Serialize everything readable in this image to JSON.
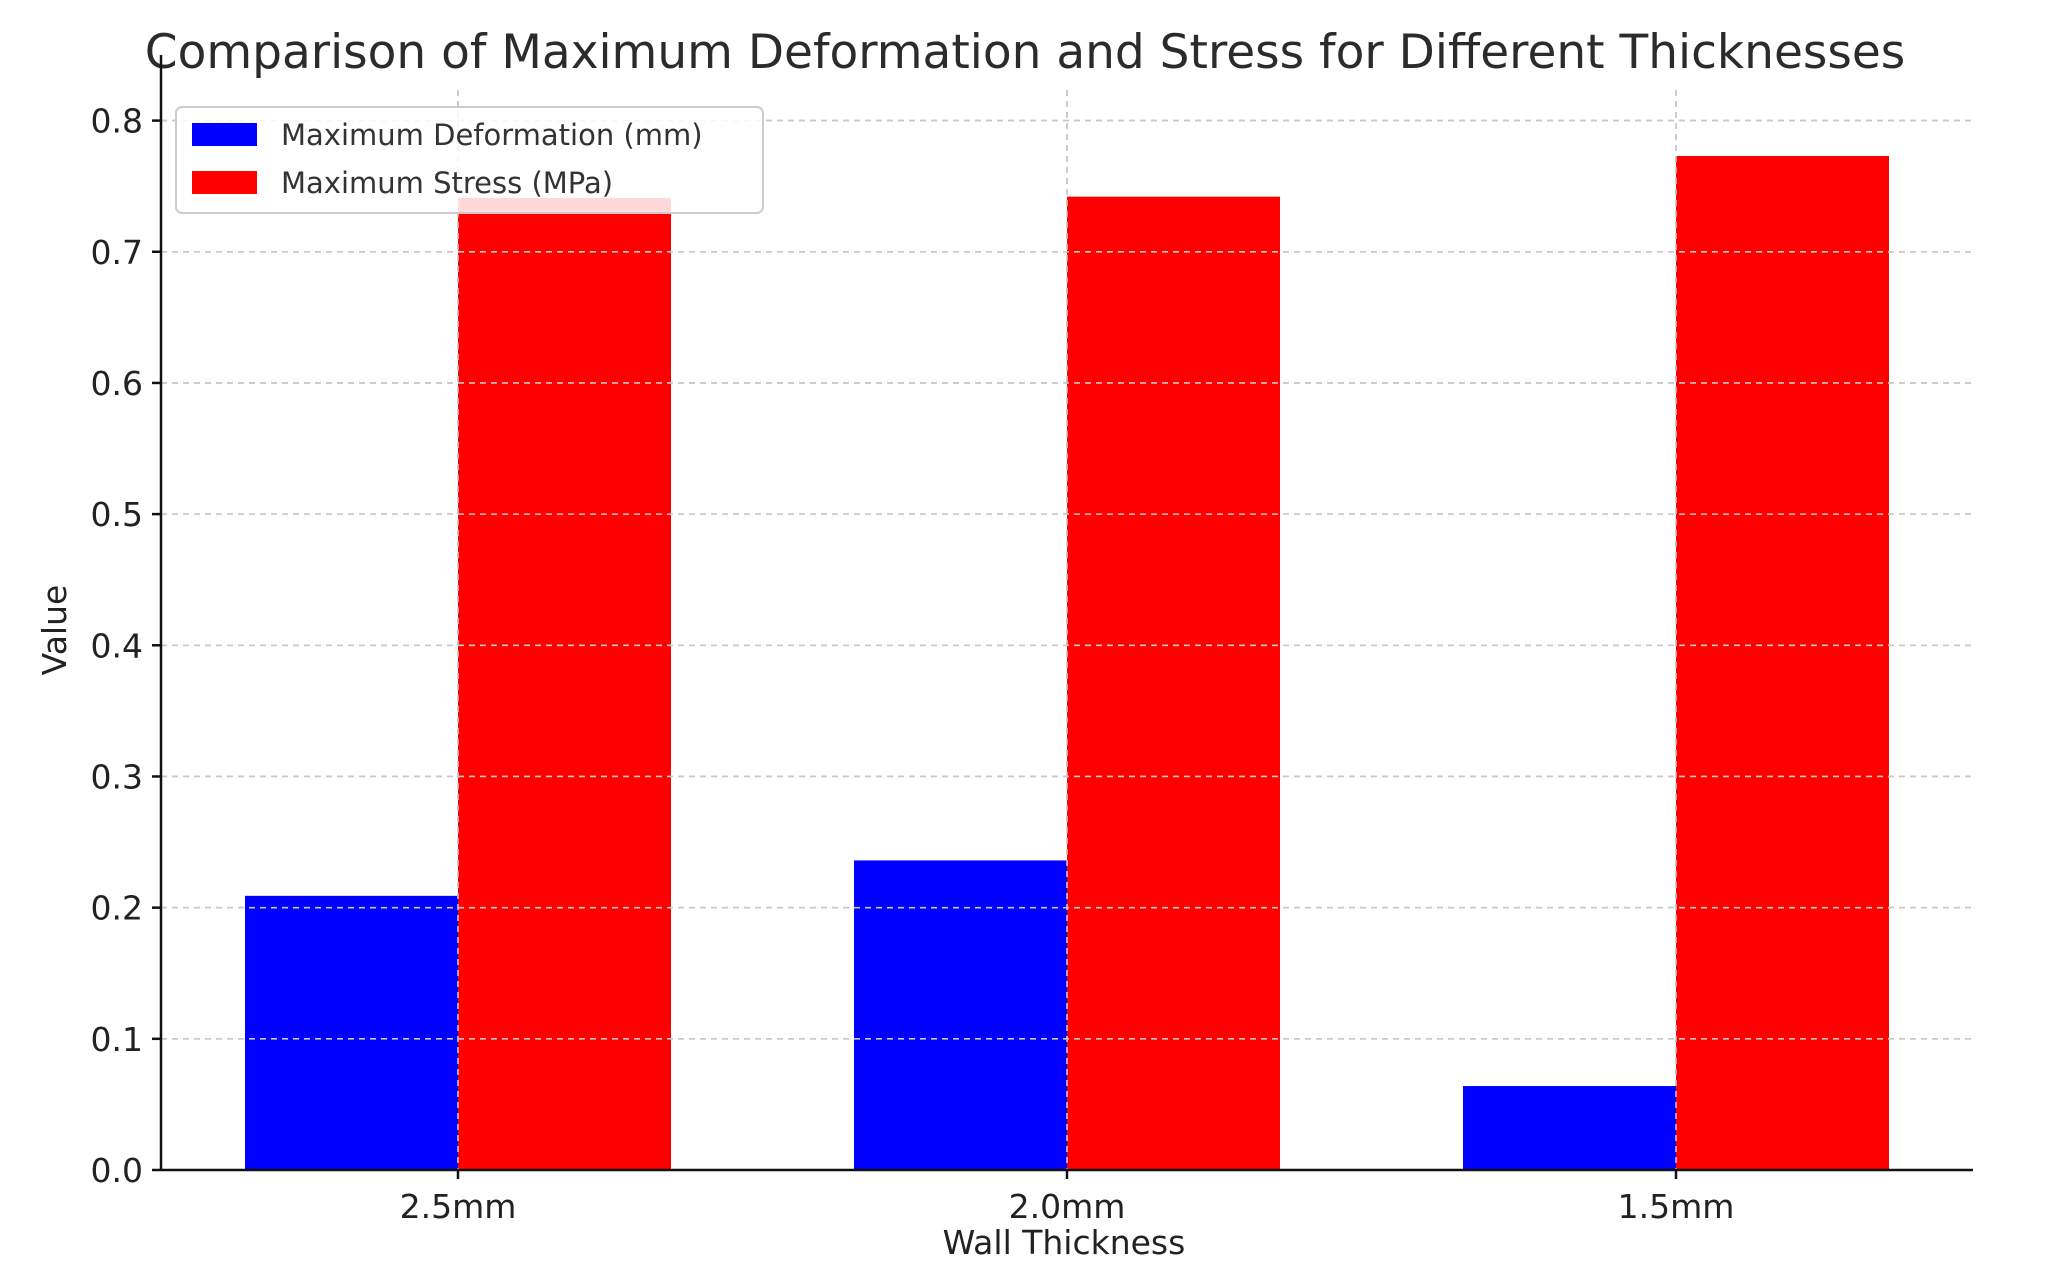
{
  "chart_data": {
    "type": "bar",
    "title": "Comparison of Maximum Deformation and Stress for Different Thicknesses",
    "xlabel": "Wall Thickness",
    "ylabel": "Value",
    "categories": [
      "2.5mm",
      "2.0mm",
      "1.5mm"
    ],
    "series": [
      {
        "name": "Maximum Deformation (mm)",
        "color": "#0000ff",
        "values": [
          0.209,
          0.236,
          0.064
        ]
      },
      {
        "name": "Maximum Stress (MPa)",
        "color": "#ff0000",
        "values": [
          0.741,
          0.742,
          0.773
        ]
      }
    ],
    "ylim": [
      0,
      0.85
    ],
    "yticks": [
      0.0,
      0.1,
      0.2,
      0.3,
      0.4,
      0.5,
      0.6,
      0.7,
      0.8
    ],
    "ytick_labels": [
      "0.0",
      "0.1",
      "0.2",
      "0.3",
      "0.4",
      "0.5",
      "0.6",
      "0.7",
      "0.8"
    ],
    "grid": true,
    "legend_position": "top-left"
  }
}
